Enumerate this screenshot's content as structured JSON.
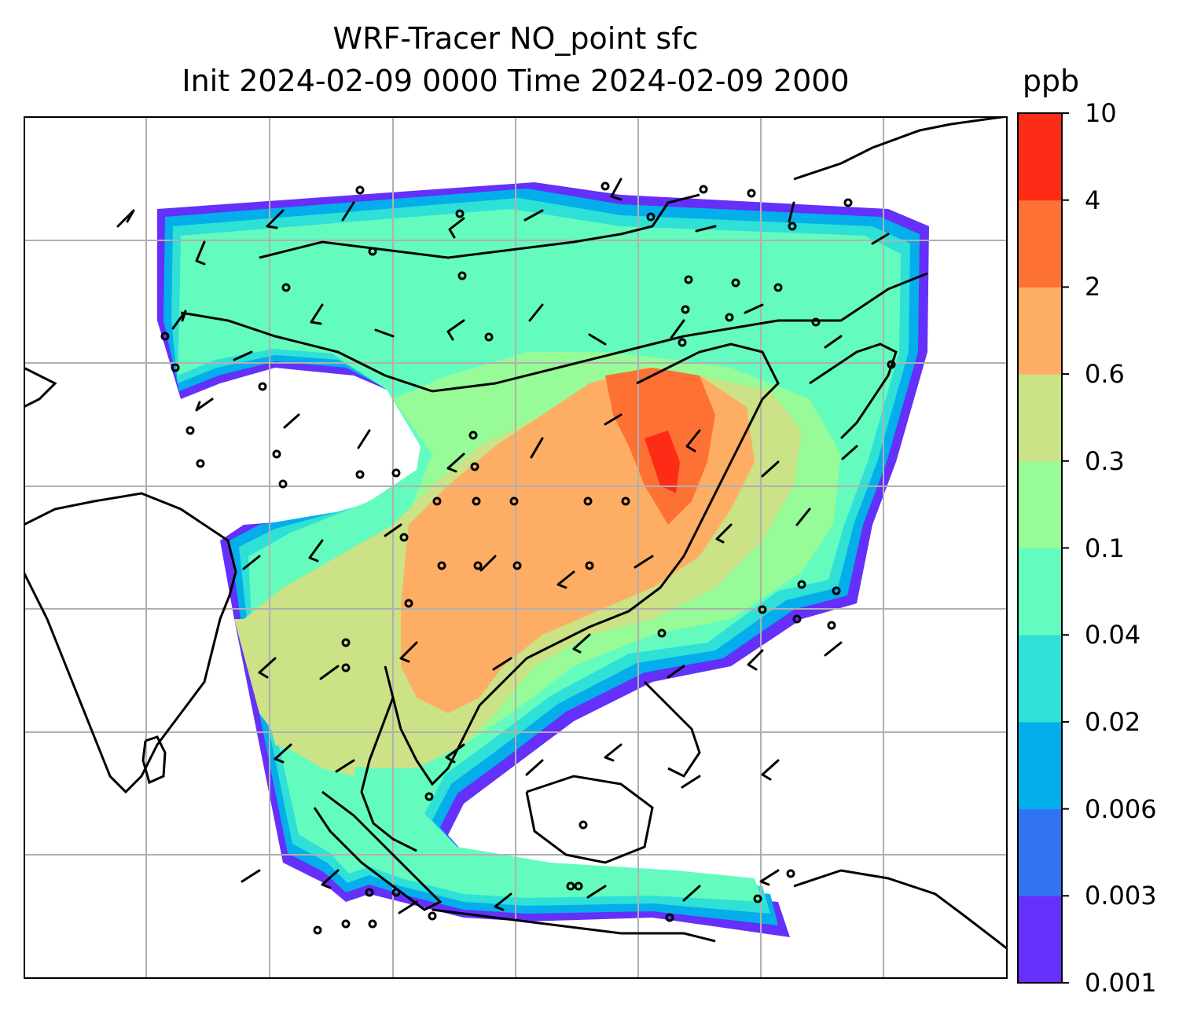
{
  "title": {
    "line1": "WRF-Tracer NO_point sfc",
    "line2": "Init 2024-02-09 0000 Time 2024-02-09 2000"
  },
  "colorbar": {
    "unit": "ppb",
    "ticks": [
      "0.001",
      "0.003",
      "0.006",
      "0.02",
      "0.04",
      "0.1",
      "0.3",
      "0.6",
      "2",
      "4",
      "10"
    ],
    "colors": [
      "#6430fa",
      "#3273f2",
      "#03aeea",
      "#2fe0d6",
      "#64fbbf",
      "#97fb97",
      "#cbe286",
      "#feae64",
      "#fe7134",
      "#fe2c17"
    ]
  },
  "map": {
    "gridlines": "on",
    "field": "NO tracer surface concentration",
    "barb_color": "#000000",
    "coastline_color": "#000000",
    "grid_color": "#b0b0b0"
  }
}
